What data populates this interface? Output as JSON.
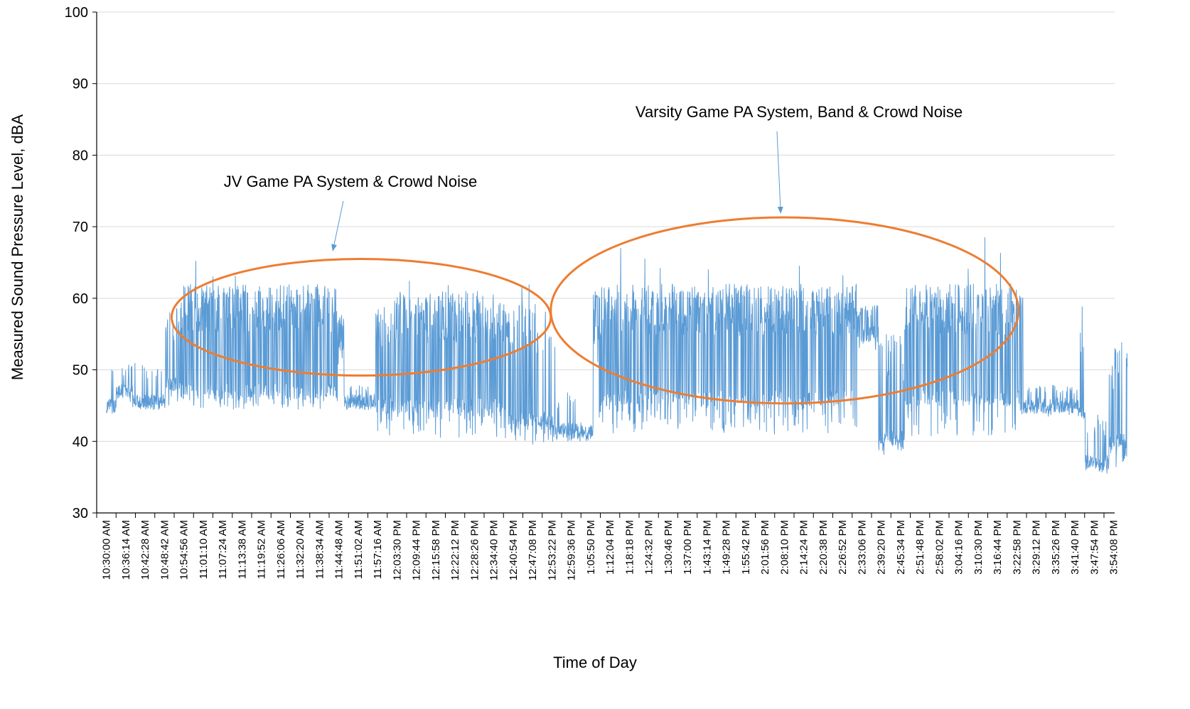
{
  "chart_data": {
    "type": "line",
    "xlabel": "Time of Day",
    "ylabel": "Measured Sound Pressure Level, dBA",
    "ylim": [
      30,
      100
    ],
    "yticks": [
      30,
      40,
      50,
      60,
      70,
      80,
      90,
      100
    ],
    "grid": true,
    "x_axis_type": "time",
    "x_start": "10:30:00 AM",
    "x_end": "3:58:30 PM",
    "sample_interval": "6 s",
    "x_tick_labels": [
      "10:30:00 AM",
      "10:36:14 AM",
      "10:42:28 AM",
      "10:48:42 AM",
      "10:54:56 AM",
      "11:01:10 AM",
      "11:07:24 AM",
      "11:13:38 AM",
      "11:19:52 AM",
      "11:26:06 AM",
      "11:32:20 AM",
      "11:38:34 AM",
      "11:44:48 AM",
      "11:51:02 AM",
      "11:57:16 AM",
      "12:03:30 PM",
      "12:09:44 PM",
      "12:15:58 PM",
      "12:22:12 PM",
      "12:28:26 PM",
      "12:34:40 PM",
      "12:40:54 PM",
      "12:47:08 PM",
      "12:53:22 PM",
      "12:59:36 PM",
      "1:05:50 PM",
      "1:12:04 PM",
      "1:18:18 PM",
      "1:24:32 PM",
      "1:30:46 PM",
      "1:37:00 PM",
      "1:43:14 PM",
      "1:49:28 PM",
      "1:55:42 PM",
      "2:01:56 PM",
      "2:08:10 PM",
      "2:14:24 PM",
      "2:20:38 PM",
      "2:26:52 PM",
      "2:33:06 PM",
      "2:39:20 PM",
      "2:45:34 PM",
      "2:51:48 PM",
      "2:58:02 PM",
      "3:04:16 PM",
      "3:10:30 PM",
      "3:16:44 PM",
      "3:22:58 PM",
      "3:29:12 PM",
      "3:35:26 PM",
      "3:41:40 PM",
      "3:47:54 PM",
      "3:54:08 PM"
    ],
    "series": [
      {
        "name": "",
        "color": "#5b9bd5",
        "segments": [
          {
            "start": "10:30:00 AM",
            "end": "10:33:10 AM",
            "baseline": 45,
            "low": 44,
            "peak": 50,
            "spike_rate": 0.1
          },
          {
            "start": "10:33:10 AM",
            "end": "10:38:30 AM",
            "baseline": 47,
            "low": 45.5,
            "peak": 51,
            "spike_rate": 0.08
          },
          {
            "start": "10:38:30 AM",
            "end": "10:49:00 AM",
            "baseline": 45.5,
            "low": 44.5,
            "peak": 51,
            "spike_rate": 0.07
          },
          {
            "start": "10:49:00 AM",
            "end": "10:54:00 AM",
            "baseline": 48,
            "low": 45,
            "peak": 59,
            "spike_rate": 0.3
          },
          {
            "start": "10:54:00 AM",
            "end": "11:44:30 AM",
            "baseline": 47,
            "low": 44.5,
            "peak": 62,
            "spike_rate": 0.55
          },
          {
            "start": "11:44:30 AM",
            "end": "11:46:30 AM",
            "baseline": 53,
            "low": 50,
            "peak": 58,
            "spike_rate": 0.4
          },
          {
            "start": "11:46:30 AM",
            "end": "11:56:40 AM",
            "baseline": 45.5,
            "low": 44.5,
            "peak": 48,
            "spike_rate": 0.08
          },
          {
            "start": "11:56:40 AM",
            "end": "12:01:00 PM",
            "baseline": 45,
            "low": 41,
            "peak": 59,
            "spike_rate": 0.45
          },
          {
            "start": "12:01:00 PM",
            "end": "12:39:30 PM",
            "baseline": 45,
            "low": 40.5,
            "peak": 61,
            "spike_rate": 0.55
          },
          {
            "start": "12:39:30 PM",
            "end": "12:54:30 PM",
            "baseline": 43,
            "low": 39.5,
            "peak": 60,
            "spike_rate": 0.35
          },
          {
            "start": "12:54:30 PM",
            "end": "1:06:40 PM",
            "baseline": 41.5,
            "low": 40,
            "peak": 47,
            "spike_rate": 0.1
          },
          {
            "start": "1:06:40 PM",
            "end": "1:08:30 PM",
            "baseline": 55,
            "low": 50,
            "peak": 61,
            "spike_rate": 0.5
          },
          {
            "start": "1:08:30 PM",
            "end": "2:31:30 PM",
            "baseline": 46,
            "low": 41,
            "peak": 62,
            "spike_rate": 0.6
          },
          {
            "start": "2:31:30 PM",
            "end": "2:38:30 PM",
            "baseline": 55,
            "low": 52,
            "peak": 59,
            "spike_rate": 0.35
          },
          {
            "start": "2:38:30 PM",
            "end": "2:46:50 PM",
            "baseline": 40.5,
            "low": 38,
            "peak": 55,
            "spike_rate": 0.25
          },
          {
            "start": "2:46:50 PM",
            "end": "3:25:00 PM",
            "baseline": 46,
            "low": 40.5,
            "peak": 62,
            "spike_rate": 0.55
          },
          {
            "start": "3:25:00 PM",
            "end": "3:43:00 PM",
            "baseline": 45,
            "low": 43.5,
            "peak": 48,
            "spike_rate": 0.08
          },
          {
            "start": "3:43:00 PM",
            "end": "3:45:00 PM",
            "baseline": 44,
            "low": 41,
            "peak": 57,
            "spike_rate": 0.25
          },
          {
            "start": "3:45:00 PM",
            "end": "3:52:40 PM",
            "baseline": 37,
            "low": 35.5,
            "peak": 44,
            "spike_rate": 0.15
          },
          {
            "start": "3:52:40 PM",
            "end": "3:58:30 PM",
            "baseline": 40,
            "low": 36,
            "peak": 53,
            "spike_rate": 0.3
          }
        ],
        "notable_peaks": [
          {
            "x": "10:53:10 AM",
            "y": 56
          },
          {
            "x": "10:58:50 AM",
            "y": 65.2
          },
          {
            "x": "11:04:20 AM",
            "y": 63
          },
          {
            "x": "11:11:30 AM",
            "y": 63.1
          },
          {
            "x": "11:26:00 AM",
            "y": 61.8
          },
          {
            "x": "11:42:40 AM",
            "y": 60.1
          },
          {
            "x": "12:07:30 PM",
            "y": 62.4
          },
          {
            "x": "12:20:00 PM",
            "y": 61.8
          },
          {
            "x": "12:43:40 PM",
            "y": 61.6
          },
          {
            "x": "12:46:00 PM",
            "y": 61.9
          },
          {
            "x": "1:15:30 PM",
            "y": 67
          },
          {
            "x": "1:23:20 PM",
            "y": 65.5
          },
          {
            "x": "1:28:10 PM",
            "y": 64.2
          },
          {
            "x": "1:43:40 PM",
            "y": 64
          },
          {
            "x": "2:13:00 PM",
            "y": 64.5
          },
          {
            "x": "2:27:00 PM",
            "y": 63.2
          },
          {
            "x": "3:07:20 PM",
            "y": 64.1
          },
          {
            "x": "3:12:40 PM",
            "y": 68.5
          },
          {
            "x": "3:17:40 PM",
            "y": 66.3
          },
          {
            "x": "3:21:00 PM",
            "y": 62
          },
          {
            "x": "3:44:00 PM",
            "y": 58.8
          },
          {
            "x": "3:56:40 PM",
            "y": 53.8
          }
        ]
      }
    ],
    "annotations": [
      {
        "text": "JV Game PA System & Crowd Noise",
        "region": {
          "x_from": "10:51:00 AM",
          "x_to": "12:53:00 PM",
          "y_from": 49.2,
          "y_to": 65.5
        },
        "color": "#ed7d31"
      },
      {
        "text": "Varsity Game PA System, Band & Crowd Noise",
        "region": {
          "x_from": "12:53:00 PM",
          "x_to": "3:23:30 PM",
          "y_from": 45.3,
          "y_to": 71.3
        },
        "color": "#ed7d31"
      }
    ]
  }
}
